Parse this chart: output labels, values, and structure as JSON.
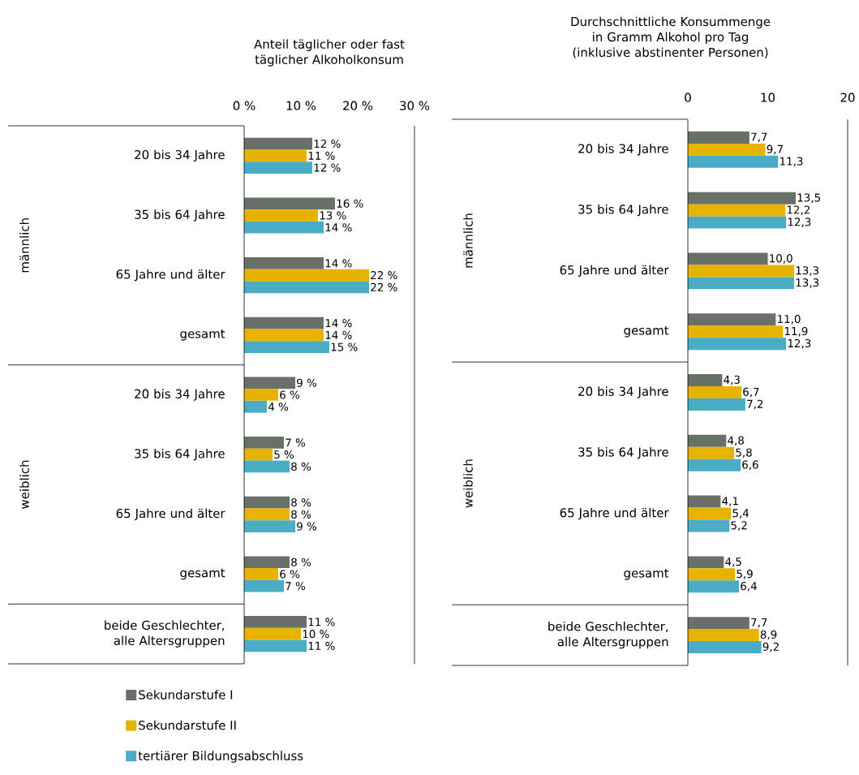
{
  "chart_data": [
    {
      "type": "bar",
      "orientation": "horizontal",
      "title": "Anteil täglicher oder fast täglicher Alkoholkonsum",
      "categories": [
        "20 bis 34 Jahre",
        "35 bis 64 Jahre",
        "65 Jahre und älter",
        "gesamt",
        "20 bis 34 Jahre",
        "35 bis 64 Jahre",
        "65 Jahre und älter",
        "gesamt",
        "beide Geschlechter, alle Altersgruppen"
      ],
      "series": [
        {
          "name": "Sekundarstufe I",
          "color": "#687068",
          "values": [
            12,
            16,
            14,
            14,
            9,
            7,
            8,
            8,
            11
          ],
          "value_labels": [
            "12 %",
            "16 %",
            "14 %",
            "14 %",
            "9 %",
            "7 %",
            "8 %",
            "8 %",
            "11 %"
          ]
        },
        {
          "name": "Sekundarstufe II",
          "color": "#e6b400",
          "values": [
            11,
            13,
            22,
            14,
            6,
            5,
            8,
            6,
            10
          ],
          "value_labels": [
            "11 %",
            "13 %",
            "22 %",
            "14 %",
            "6 %",
            "5 %",
            "8 %",
            "6 %",
            "10 %"
          ]
        },
        {
          "name": "tertiärer Bildungsabschluss",
          "color": "#4bacc6",
          "values": [
            12,
            14,
            22,
            15,
            4,
            8,
            9,
            7,
            11
          ],
          "value_labels": [
            "12 %",
            "14 %",
            "22 %",
            "15 %",
            "4 %",
            "8 %",
            "9 %",
            "7 %",
            "11 %"
          ]
        }
      ],
      "xlim": [
        0,
        30
      ],
      "xticks": [
        {
          "value": 0,
          "label": "0 %"
        },
        {
          "value": 10,
          "label": "10 %"
        },
        {
          "value": 20,
          "label": "20 %"
        },
        {
          "value": 30,
          "label": "30 %"
        }
      ],
      "annotations": [
        "männlich",
        "weiblich"
      ],
      "legend": "bottom"
    },
    {
      "type": "bar",
      "orientation": "horizontal",
      "title": "Durchschnittliche Konsummenge in Gramm Alkohol pro Tag",
      "subtitle": "(inklusive abstinenter Personen)",
      "categories": [
        "20 bis 34 Jahre",
        "35 bis 64 Jahre",
        "65 Jahre und älter",
        "gesamt",
        "20 bis 34 Jahre",
        "35 bis 64 Jahre",
        "65 Jahre und älter",
        "gesamt",
        "beide Geschlechter, alle Altersgruppen"
      ],
      "series": [
        {
          "color": "#687068",
          "values": [
            7.7,
            13.5,
            10.0,
            11.0,
            4.3,
            4.8,
            4.1,
            4.5,
            7.7
          ],
          "value_labels": [
            "7,7",
            "13,5",
            "10,0",
            "11,0",
            "4,3",
            "4,8",
            "4,1",
            "4,5",
            "7,7"
          ]
        },
        {
          "color": "#e6b400",
          "values": [
            9.7,
            12.2,
            13.3,
            11.9,
            6.7,
            5.8,
            5.4,
            5.9,
            8.9
          ],
          "value_labels": [
            "9,7",
            "12,2",
            "13,3",
            "11,9",
            "6,7",
            "5,8",
            "5,4",
            "5,9",
            "8,9"
          ]
        },
        {
          "color": "#4bacc6",
          "values": [
            11.3,
            12.3,
            13.3,
            12.3,
            7.2,
            6.6,
            5.2,
            6.4,
            9.2
          ],
          "value_labels": [
            "11,3",
            "12,3",
            "13,3",
            "12,3",
            "7,2",
            "6,6",
            "5,2",
            "6,4",
            "9,2"
          ]
        }
      ],
      "xlim": [
        0,
        20
      ],
      "xticks": [
        0,
        10,
        20
      ],
      "annotations": [
        "männlich",
        "weiblich"
      ]
    }
  ]
}
